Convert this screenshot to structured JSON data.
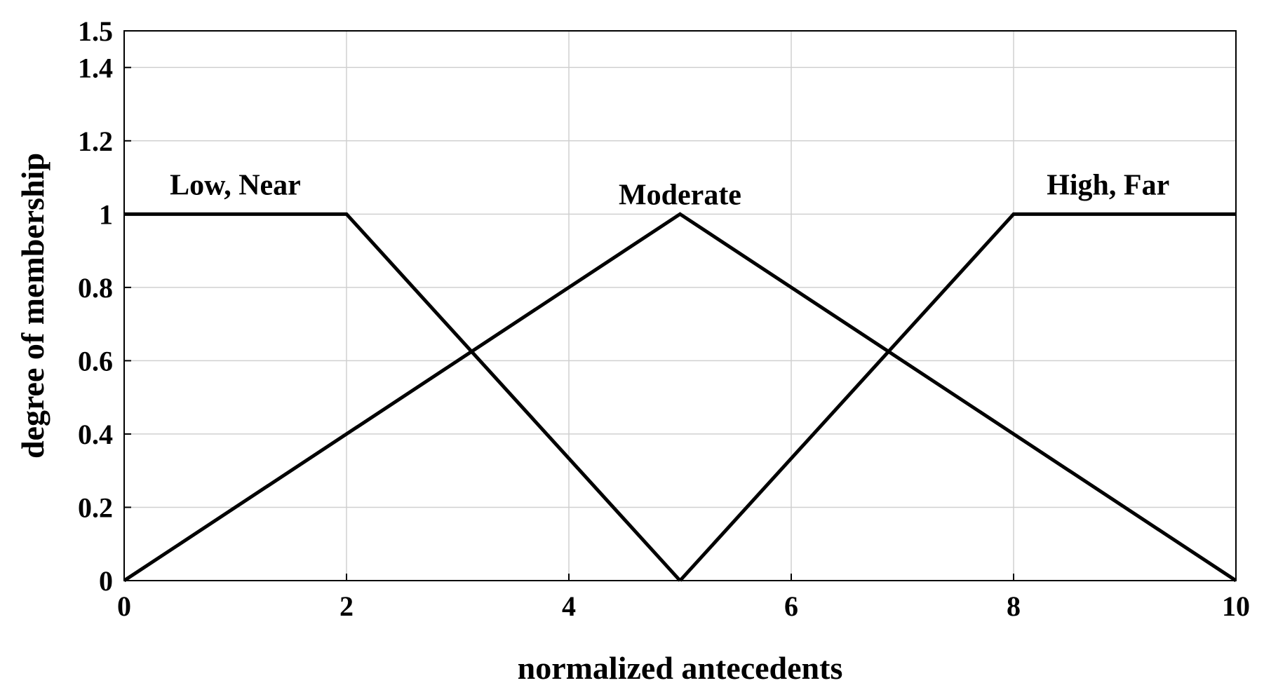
{
  "chart_data": {
    "type": "line",
    "title": "",
    "xlabel": "normalized antecedents",
    "ylabel": "degree of membership",
    "xlim": [
      0,
      10
    ],
    "ylim": [
      0,
      1.5
    ],
    "xticks": [
      0,
      2,
      4,
      6,
      8,
      10
    ],
    "yticks": [
      0,
      0.2,
      0.4,
      0.6,
      0.8,
      1,
      1.2,
      1.4,
      1.5
    ],
    "grid": true,
    "line_color": "#000000",
    "series": [
      {
        "label": "Low, Near",
        "x": [
          0,
          2,
          5
        ],
        "y": [
          1,
          1,
          0
        ],
        "label_at": [
          1,
          1
        ]
      },
      {
        "label": "Moderate",
        "x": [
          0,
          5,
          10
        ],
        "y": [
          0,
          1,
          0
        ],
        "label_at": [
          5,
          1
        ]
      },
      {
        "label": "High, Far",
        "x": [
          5,
          8,
          10
        ],
        "y": [
          0,
          1,
          1
        ],
        "label_at": [
          8.85,
          1
        ]
      }
    ]
  }
}
